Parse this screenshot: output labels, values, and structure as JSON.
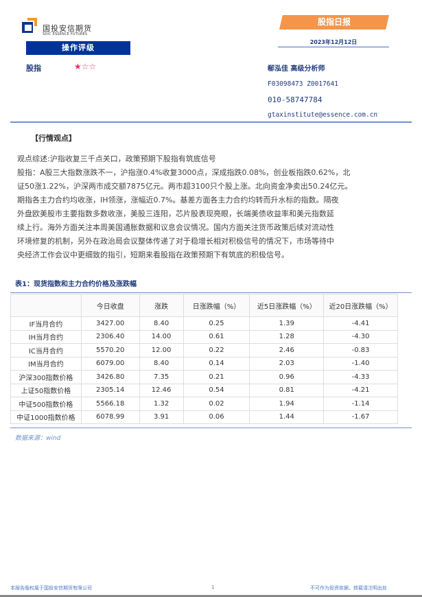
{
  "header": {
    "logo_cn": "国投安信期货",
    "logo_en": "SDIC ESSENCE FUTURES",
    "report_type": "股指日报",
    "date": "2023年12月12日",
    "rating_title": "操作评级",
    "rating_item": "股指",
    "rating_stars": "★☆☆",
    "rating_value": 1,
    "rating_max": 3,
    "analyst": "郗泓佳 高级分析师",
    "codes": "F03098473 Z0017641",
    "phone": "010-58747784",
    "email": "gtaxinstitute@essence.com.cn"
  },
  "section_title": "【行情观点】",
  "paragraph_lines": [
    "观点综述:沪指收复三千点关口，政策预期下股指有筑底信号",
    "股指：A股三大指数涨跌不一，沪指涨0.4%收复3000点，深成指跌0.08%，创业板指跌0.62%，北",
    "证50涨1.22%，沪深两市成交额7875亿元。两市超3100只个股上涨。北向资金净卖出50.24亿元。",
    "期指各主力合约均收涨，IH领涨，涨幅近0.7%。基差方面各主力合约均转而升水标的指数。隔夜",
    "外盘欧美股市主要指数多数收涨，美股三连阳，芯片股表现亮眼，长端美债收益率和美元指数延",
    "续上行。海外方面关注本周美国通胀数据和议息会议情况。国内方面关注货币政策后续对流动性",
    "环境修复的机制，另外在政治局会议整体传递了对于稳增长相对积极信号的情况下，市场等待中",
    "央经济工作会议中更细致的指引，短期来看股指在政策预期下有筑底的积极信号。"
  ],
  "table": {
    "title": "表1：现货指数和主力合约价格及涨跌幅",
    "headers": [
      "",
      "今日收盘",
      "涨跌",
      "日涨跌幅（%）",
      "近5日涨跌幅（%）",
      "近20日涨跌幅（%）"
    ],
    "rows": [
      [
        "IF当月合约",
        "3427.00",
        "8.40",
        "0.25",
        "1.39",
        "-4.41"
      ],
      [
        "IH当月合约",
        "2306.40",
        "14.00",
        "0.61",
        "1.28",
        "-4.30"
      ],
      [
        "IC当月合约",
        "5570.20",
        "12.00",
        "0.22",
        "2.46",
        "-0.83"
      ],
      [
        "IM当月合约",
        "6079.00",
        "8.40",
        "0.14",
        "2.03",
        "-1.40"
      ],
      [
        "沪深300指数价格",
        "3426.80",
        "7.35",
        "0.21",
        "0.96",
        "-4.33"
      ],
      [
        "上证50指数价格",
        "2305.14",
        "12.46",
        "0.54",
        "0.81",
        "-4.21"
      ],
      [
        "中证500指数价格",
        "5566.18",
        "1.32",
        "0.02",
        "1.94",
        "-1.14"
      ],
      [
        "中证1000指数价格",
        "6078.99",
        "3.91",
        "0.06",
        "1.44",
        "-1.67"
      ]
    ],
    "source": "数据来源：wind"
  },
  "footer": {
    "left": "本报告版权属于国投安信期货有限公司",
    "page": "1",
    "right": "不可作为投资依据，转载请注明出处"
  },
  "colors": {
    "brand_blue": "#003399",
    "banner_orange": "#f5954a",
    "star": "#e5326b"
  }
}
